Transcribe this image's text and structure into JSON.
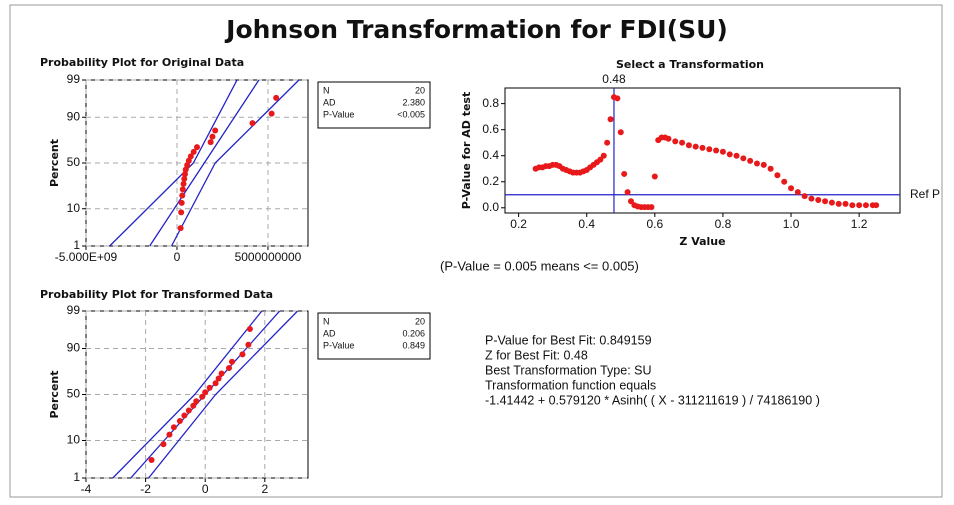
{
  "title": "Johnson Transformation for FDI(SU)",
  "chart_data": [
    {
      "type": "probability",
      "title": "Probability Plot for Original Data",
      "ylabel": "Percent",
      "yscale": "probability",
      "grid": true,
      "color": "#e8191b",
      "line_color": "#2323c8",
      "x": [
        200000000,
        230000000,
        260000000,
        290000000,
        320000000,
        360000000,
        400000000,
        440000000,
        480000000,
        560000000,
        650000000,
        760000000,
        920000000,
        1100000000,
        1850000000,
        1950000000,
        2100000000,
        4150000000,
        5200000000,
        5450000000
      ],
      "values": [
        3.4,
        8.3,
        13.2,
        18.1,
        23.0,
        27.9,
        32.8,
        37.7,
        42.6,
        47.5,
        52.5,
        57.4,
        62.3,
        67.2,
        72.1,
        77.0,
        81.9,
        86.8,
        91.7,
        96.6
      ],
      "fit_lines": [
        {
          "x": [
            -1500000000,
            1500000000,
            4500000000
          ],
          "y": [
            1,
            50,
            99
          ]
        },
        {
          "x": [
            -3700000000,
            900000000,
            3300000000
          ],
          "y": [
            1,
            50,
            99
          ]
        },
        {
          "x": [
            -300000000,
            2100000000,
            6700000000
          ],
          "y": [
            1,
            50,
            99
          ]
        }
      ],
      "xlim": [
        -5000000000,
        7200000000
      ],
      "xticks": [
        {
          "value": -5000000000,
          "label": "-5.000E+09"
        },
        0,
        5000000000
      ],
      "ylim": [
        1,
        99
      ],
      "yticks": [
        1,
        10,
        50,
        90,
        99
      ],
      "stats": [
        {
          "label": "N",
          "value": 20
        },
        {
          "label": "AD",
          "value": "2.380"
        },
        {
          "label": "P-Value",
          "value": "<0.005"
        }
      ]
    },
    {
      "type": "probability",
      "title": "Probability Plot for Transformed Data",
      "ylabel": "Percent",
      "yscale": "probability",
      "grid": true,
      "color": "#e8191b",
      "line_color": "#2323c8",
      "x": [
        -1.8,
        -1.4,
        -1.2,
        -1.05,
        -0.85,
        -0.7,
        -0.55,
        -0.4,
        -0.3,
        -0.1,
        0.0,
        0.15,
        0.35,
        0.45,
        0.55,
        0.8,
        0.9,
        1.25,
        1.45,
        1.5
      ],
      "values": [
        3.4,
        8.3,
        13.2,
        18.1,
        23.0,
        27.9,
        32.8,
        37.7,
        42.6,
        47.5,
        52.5,
        57.4,
        62.3,
        67.2,
        72.1,
        77.0,
        81.9,
        86.8,
        91.7,
        96.6
      ],
      "fit_lines": [
        {
          "x": [
            -2.5,
            0,
            2.5
          ],
          "y": [
            1,
            50,
            99
          ]
        },
        {
          "x": [
            -3.1,
            -0.35,
            1.9
          ],
          "y": [
            1,
            50,
            99
          ]
        },
        {
          "x": [
            -1.9,
            0.35,
            3.1
          ],
          "y": [
            1,
            50,
            99
          ]
        }
      ],
      "xlim": [
        -4,
        3.45
      ],
      "xticks": [
        -4,
        -2,
        0,
        2
      ],
      "ylim": [
        1,
        99
      ],
      "yticks": [
        1,
        10,
        50,
        90,
        99
      ],
      "stats": [
        {
          "label": "N",
          "value": 20
        },
        {
          "label": "AD",
          "value": "0.206"
        },
        {
          "label": "P-Value",
          "value": "0.849"
        }
      ]
    },
    {
      "type": "scatter",
      "title": "Select a Transformation",
      "xlabel": "Z Value",
      "ylabel": "P-Value for AD test",
      "color": "#e8191b",
      "line_color": "#2323c8",
      "x": [
        0.25,
        0.26,
        0.27,
        0.28,
        0.29,
        0.3,
        0.31,
        0.32,
        0.33,
        0.34,
        0.35,
        0.36,
        0.37,
        0.38,
        0.39,
        0.4,
        0.41,
        0.42,
        0.43,
        0.44,
        0.45,
        0.46,
        0.47,
        0.48,
        0.49,
        0.5,
        0.51,
        0.52,
        0.53,
        0.54,
        0.55,
        0.56,
        0.57,
        0.58,
        0.59,
        0.6,
        0.61,
        0.62,
        0.63,
        0.64,
        0.66,
        0.68,
        0.7,
        0.72,
        0.74,
        0.76,
        0.78,
        0.8,
        0.82,
        0.84,
        0.86,
        0.88,
        0.9,
        0.92,
        0.94,
        0.96,
        0.98,
        1.0,
        1.02,
        1.04,
        1.06,
        1.08,
        1.1,
        1.12,
        1.14,
        1.16,
        1.18,
        1.2,
        1.22,
        1.24,
        1.25
      ],
      "values": [
        0.3,
        0.31,
        0.31,
        0.32,
        0.32,
        0.33,
        0.33,
        0.32,
        0.3,
        0.29,
        0.28,
        0.27,
        0.27,
        0.27,
        0.28,
        0.29,
        0.31,
        0.33,
        0.35,
        0.37,
        0.4,
        0.5,
        0.68,
        0.85,
        0.84,
        0.58,
        0.26,
        0.12,
        0.05,
        0.02,
        0.01,
        0.005,
        0.005,
        0.005,
        0.005,
        0.24,
        0.52,
        0.54,
        0.54,
        0.53,
        0.51,
        0.5,
        0.48,
        0.47,
        0.46,
        0.45,
        0.44,
        0.43,
        0.41,
        0.4,
        0.38,
        0.36,
        0.34,
        0.33,
        0.3,
        0.25,
        0.2,
        0.15,
        0.12,
        0.09,
        0.07,
        0.06,
        0.05,
        0.04,
        0.03,
        0.03,
        0.02,
        0.02,
        0.02,
        0.02,
        0.02
      ],
      "ref_line": {
        "value": 0.1,
        "label": "Ref P"
      },
      "best_x": 0.48,
      "xlim": [
        0.16,
        1.32
      ],
      "xticks": [
        0.2,
        0.4,
        0.6,
        0.8,
        {
          "value": 1,
          "label": "1.0"
        },
        1.2
      ],
      "ylim": [
        -0.04,
        0.92
      ],
      "yticks": [
        {
          "value": 0,
          "label": "0.0"
        },
        0.2,
        0.4,
        0.6,
        0.8
      ]
    }
  ],
  "note": "(P-Value = 0.005 means <= 0.005)",
  "results": [
    "P-Value for Best Fit: 0.849159",
    "Z for Best Fit: 0.48",
    "Best Transformation Type: SU",
    "Transformation function equals",
    "-1.41442 + 0.579120 * Asinh( ( X - 311211619 ) / 74186190 )"
  ]
}
